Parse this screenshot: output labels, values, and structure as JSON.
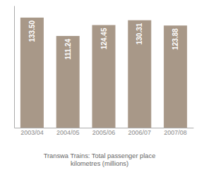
{
  "chart_data": {
    "type": "bar",
    "title": "Transwa Trains: Total passenger place\nkilometres (millions)",
    "categories": [
      "2003/04",
      "2004/05",
      "2005/06",
      "2006/07",
      "2007/08"
    ],
    "values": [
      133.5,
      111.24,
      124.45,
      130.31,
      123.88
    ],
    "value_labels": [
      "133.50",
      "111.24",
      "124.45",
      "130.31",
      "123.88"
    ],
    "color": "#a89888",
    "ylim": [
      0,
      148
    ],
    "tick_labels": "x",
    "data_labels": true,
    "grid": false
  }
}
